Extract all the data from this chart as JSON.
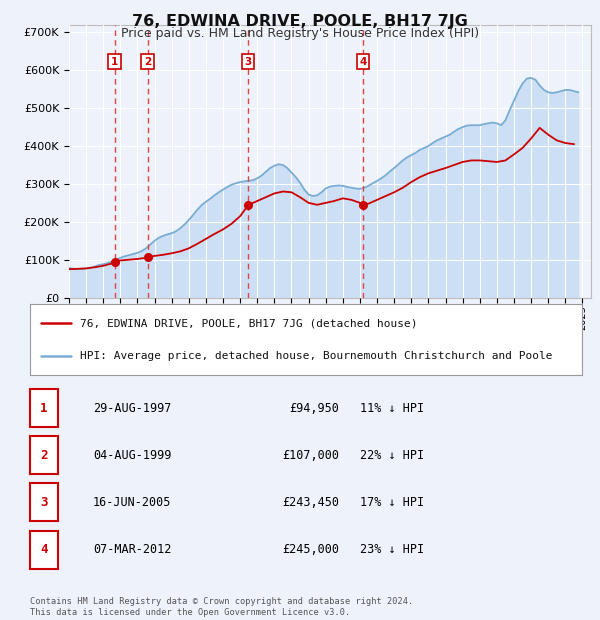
{
  "title": "76, EDWINA DRIVE, POOLE, BH17 7JG",
  "subtitle": "Price paid vs. HM Land Registry's House Price Index (HPI)",
  "xlim": [
    1995.0,
    2025.5
  ],
  "ylim": [
    0,
    720000
  ],
  "yticks": [
    0,
    100000,
    200000,
    300000,
    400000,
    500000,
    600000,
    700000
  ],
  "background_color": "#eef2fb",
  "plot_bg_color": "#eef2fb",
  "grid_color": "#ffffff",
  "transaction_color": "#cc0000",
  "hpi_color": "#7aadd4",
  "hpi_fill_color": "#ccdff5",
  "transactions": [
    {
      "year": 1997.66,
      "price": 94950,
      "label": "1"
    },
    {
      "year": 1999.59,
      "price": 107000,
      "label": "2"
    },
    {
      "year": 2005.46,
      "price": 243450,
      "label": "3"
    },
    {
      "year": 2012.18,
      "price": 245000,
      "label": "4"
    }
  ],
  "hpi_data_years": [
    1995.0,
    1995.25,
    1995.5,
    1995.75,
    1996.0,
    1996.25,
    1996.5,
    1996.75,
    1997.0,
    1997.25,
    1997.5,
    1997.75,
    1998.0,
    1998.25,
    1998.5,
    1998.75,
    1999.0,
    1999.25,
    1999.5,
    1999.75,
    2000.0,
    2000.25,
    2000.5,
    2000.75,
    2001.0,
    2001.25,
    2001.5,
    2001.75,
    2002.0,
    2002.25,
    2002.5,
    2002.75,
    2003.0,
    2003.25,
    2003.5,
    2003.75,
    2004.0,
    2004.25,
    2004.5,
    2004.75,
    2005.0,
    2005.25,
    2005.5,
    2005.75,
    2006.0,
    2006.25,
    2006.5,
    2006.75,
    2007.0,
    2007.25,
    2007.5,
    2007.75,
    2008.0,
    2008.25,
    2008.5,
    2008.75,
    2009.0,
    2009.25,
    2009.5,
    2009.75,
    2010.0,
    2010.25,
    2010.5,
    2010.75,
    2011.0,
    2011.25,
    2011.5,
    2011.75,
    2012.0,
    2012.25,
    2012.5,
    2012.75,
    2013.0,
    2013.25,
    2013.5,
    2013.75,
    2014.0,
    2014.25,
    2014.5,
    2014.75,
    2015.0,
    2015.25,
    2015.5,
    2015.75,
    2016.0,
    2016.25,
    2016.5,
    2016.75,
    2017.0,
    2017.25,
    2017.5,
    2017.75,
    2018.0,
    2018.25,
    2018.5,
    2018.75,
    2019.0,
    2019.25,
    2019.5,
    2019.75,
    2020.0,
    2020.25,
    2020.5,
    2020.75,
    2021.0,
    2021.25,
    2021.5,
    2021.75,
    2022.0,
    2022.25,
    2022.5,
    2022.75,
    2023.0,
    2023.25,
    2023.5,
    2023.75,
    2024.0,
    2024.25,
    2024.5,
    2024.75
  ],
  "hpi_data_values": [
    78000,
    76000,
    75000,
    76000,
    77000,
    79000,
    82000,
    86000,
    88000,
    91000,
    95000,
    100000,
    105000,
    109000,
    112000,
    115000,
    118000,
    123000,
    130000,
    140000,
    150000,
    158000,
    163000,
    167000,
    170000,
    175000,
    183000,
    193000,
    205000,
    218000,
    232000,
    244000,
    253000,
    261000,
    270000,
    278000,
    285000,
    292000,
    298000,
    302000,
    305000,
    307000,
    308000,
    310000,
    315000,
    322000,
    332000,
    342000,
    348000,
    352000,
    350000,
    342000,
    330000,
    318000,
    303000,
    285000,
    272000,
    268000,
    270000,
    278000,
    288000,
    293000,
    295000,
    296000,
    295000,
    292000,
    290000,
    288000,
    287000,
    290000,
    295000,
    302000,
    308000,
    315000,
    323000,
    333000,
    342000,
    352000,
    362000,
    370000,
    376000,
    382000,
    390000,
    395000,
    400000,
    408000,
    415000,
    420000,
    425000,
    430000,
    438000,
    445000,
    450000,
    454000,
    455000,
    455000,
    455000,
    458000,
    460000,
    462000,
    460000,
    455000,
    468000,
    495000,
    520000,
    545000,
    565000,
    578000,
    580000,
    575000,
    560000,
    548000,
    542000,
    540000,
    542000,
    545000,
    548000,
    548000,
    545000,
    542000
  ],
  "pp_data_years": [
    1995.0,
    1995.5,
    1996.0,
    1996.5,
    1997.0,
    1997.5,
    1997.66,
    1997.75,
    1998.0,
    1998.5,
    1999.0,
    1999.5,
    1999.59,
    1999.75,
    2000.0,
    2000.5,
    2001.0,
    2001.5,
    2002.0,
    2002.5,
    2003.0,
    2003.5,
    2004.0,
    2004.5,
    2005.0,
    2005.46,
    2005.5,
    2006.0,
    2006.5,
    2007.0,
    2007.5,
    2008.0,
    2008.5,
    2009.0,
    2009.5,
    2010.0,
    2010.5,
    2011.0,
    2011.5,
    2012.0,
    2012.18,
    2012.5,
    2013.0,
    2013.5,
    2014.0,
    2014.5,
    2015.0,
    2015.5,
    2016.0,
    2016.5,
    2017.0,
    2017.5,
    2018.0,
    2018.5,
    2019.0,
    2019.5,
    2020.0,
    2020.5,
    2021.0,
    2021.5,
    2022.0,
    2022.5,
    2023.0,
    2023.5,
    2024.0,
    2024.5
  ],
  "pp_data_values": [
    75000,
    76000,
    77000,
    80000,
    84000,
    90000,
    94950,
    96000,
    98000,
    100000,
    102000,
    105000,
    107000,
    108000,
    110000,
    113000,
    117000,
    122000,
    130000,
    142000,
    155000,
    168000,
    180000,
    195000,
    215000,
    243450,
    245000,
    255000,
    265000,
    275000,
    280000,
    278000,
    265000,
    250000,
    245000,
    250000,
    255000,
    262000,
    258000,
    250000,
    245000,
    248000,
    258000,
    268000,
    278000,
    290000,
    305000,
    318000,
    328000,
    335000,
    342000,
    350000,
    358000,
    362000,
    362000,
    360000,
    358000,
    362000,
    378000,
    395000,
    420000,
    448000,
    430000,
    415000,
    408000,
    405000
  ],
  "legend_line1": "76, EDWINA DRIVE, POOLE, BH17 7JG (detached house)",
  "legend_line2": "HPI: Average price, detached house, Bournemouth Christchurch and Poole",
  "table_data": [
    {
      "num": "1",
      "date": "29-AUG-1997",
      "price": "£94,950",
      "hpi": "11% ↓ HPI"
    },
    {
      "num": "2",
      "date": "04-AUG-1999",
      "price": "£107,000",
      "hpi": "22% ↓ HPI"
    },
    {
      "num": "3",
      "date": "16-JUN-2005",
      "price": "£243,450",
      "hpi": "17% ↓ HPI"
    },
    {
      "num": "4",
      "date": "07-MAR-2012",
      "price": "£245,000",
      "hpi": "23% ↓ HPI"
    }
  ],
  "footer": "Contains HM Land Registry data © Crown copyright and database right 2024.\nThis data is licensed under the Open Government Licence v3.0.",
  "xtick_years": [
    1995,
    1996,
    1997,
    1998,
    1999,
    2000,
    2001,
    2002,
    2003,
    2004,
    2005,
    2006,
    2007,
    2008,
    2009,
    2010,
    2011,
    2012,
    2013,
    2014,
    2015,
    2016,
    2017,
    2018,
    2019,
    2020,
    2021,
    2022,
    2023,
    2024,
    2025
  ]
}
